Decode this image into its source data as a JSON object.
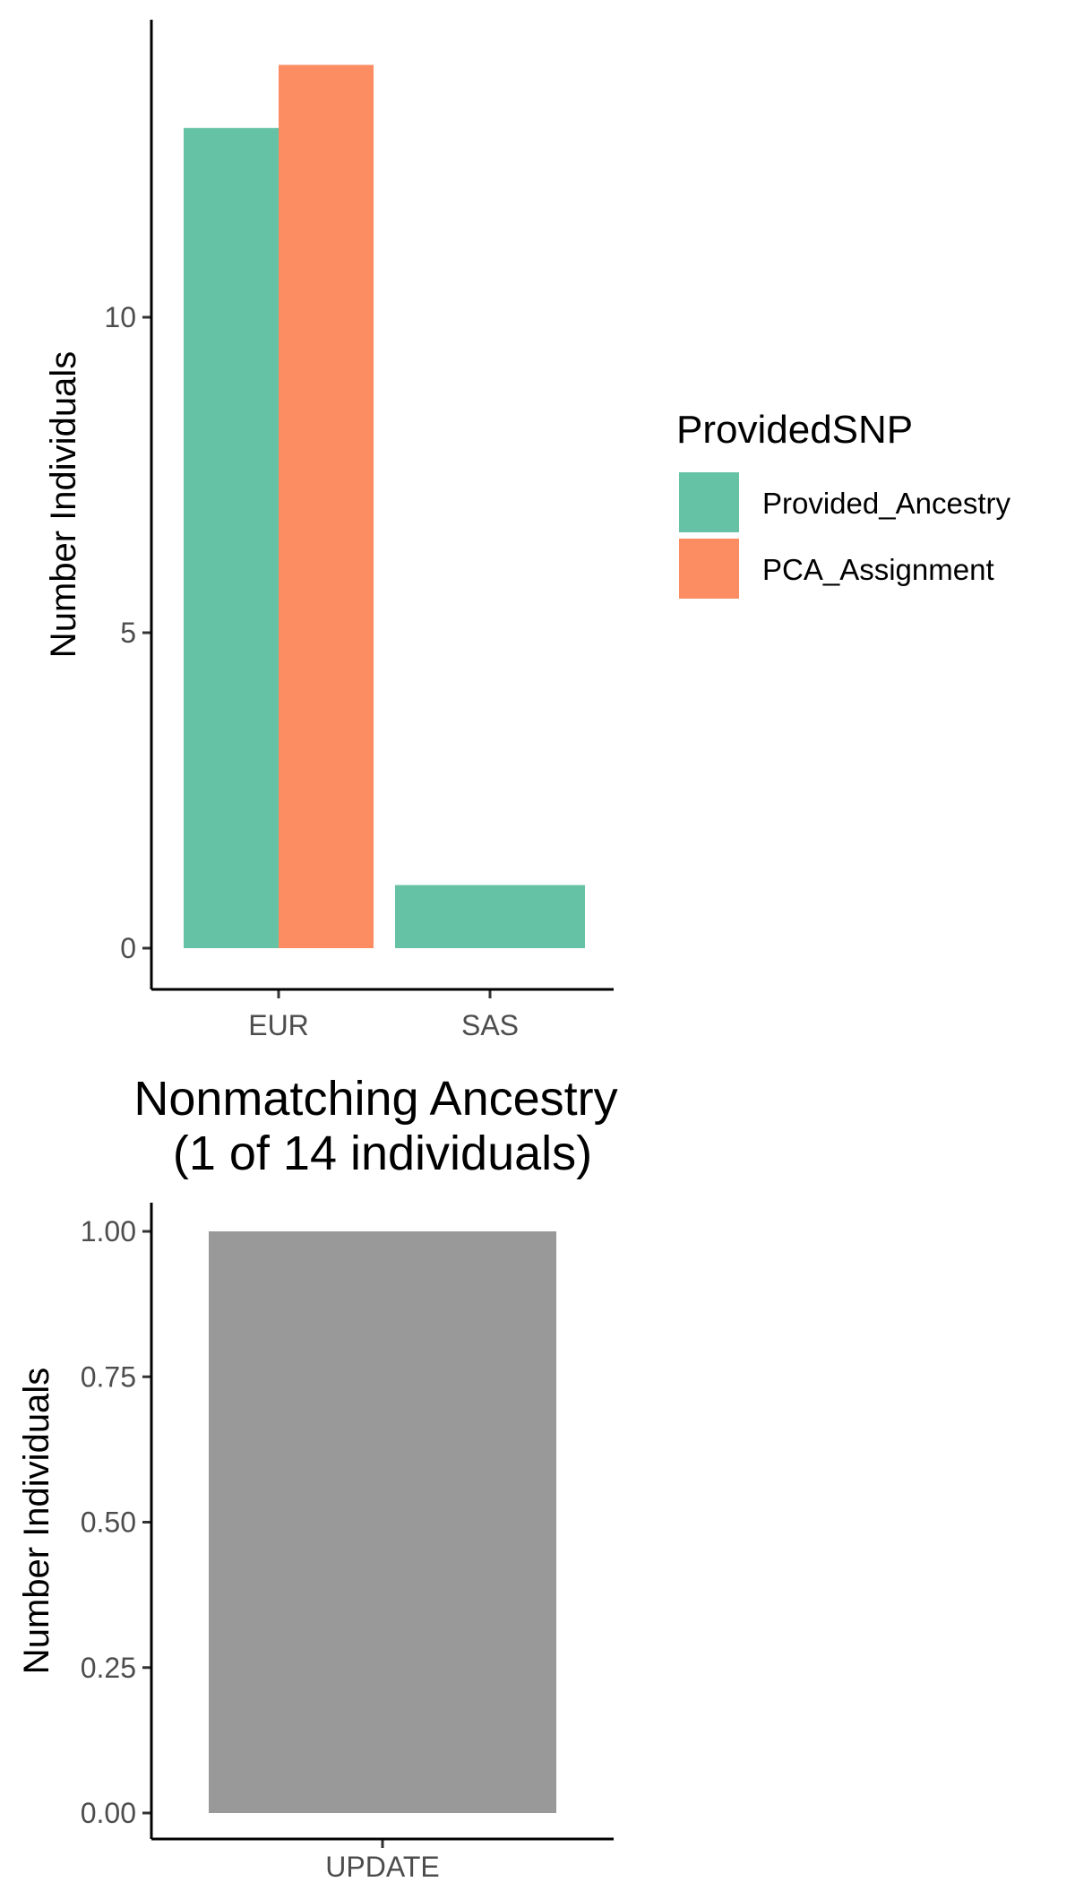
{
  "chart_data": [
    {
      "type": "bar",
      "title": "",
      "xlabel": "",
      "ylabel": "Number Individuals",
      "categories": [
        "EUR",
        "SAS"
      ],
      "series": [
        {
          "name": "Provided_Ancestry",
          "color": "#66C2A5",
          "values": [
            13,
            1
          ]
        },
        {
          "name": "PCA_Assignment",
          "color": "#FC8D62",
          "values": [
            14,
            0
          ]
        }
      ],
      "yticks": [
        0,
        5,
        10
      ],
      "ytick_labels": [
        "0",
        "5",
        "10"
      ],
      "ylim": [
        0,
        14
      ],
      "grid": false,
      "legend": {
        "title": "ProvidedSNP",
        "position": "right"
      }
    },
    {
      "type": "bar",
      "title": "Nonmatching Ancestry\n(1 of 14 individuals)",
      "title_lines": [
        "Nonmatching Ancestry",
        "(1 of 14 individuals)"
      ],
      "xlabel": "",
      "ylabel": "Number Individuals",
      "categories": [
        "UPDATE"
      ],
      "values": [
        1
      ],
      "color": "#999999",
      "yticks": [
        0,
        0.25,
        0.5,
        0.75,
        1
      ],
      "ytick_labels": [
        "0.00",
        "0.25",
        "0.50",
        "0.75",
        "1.00"
      ],
      "ylim": [
        0,
        1
      ],
      "grid": false
    }
  ]
}
